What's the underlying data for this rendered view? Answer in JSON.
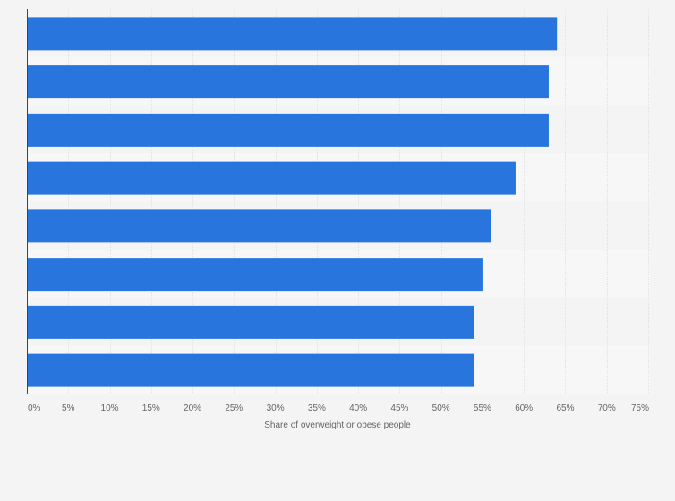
{
  "chart_data": {
    "type": "bar",
    "orientation": "horizontal",
    "categories": [
      "",
      "",
      "",
      "",
      "",
      "",
      "",
      ""
    ],
    "values": [
      64,
      63,
      63,
      59,
      56,
      55,
      54,
      54
    ],
    "xlabel": "Share of overweight or obese people",
    "xlim": [
      0,
      75
    ],
    "x_ticks": [
      "0%",
      "5%",
      "10%",
      "15%",
      "20%",
      "25%",
      "30%",
      "35%",
      "40%",
      "45%",
      "50%",
      "55%",
      "60%",
      "65%",
      "70%",
      "75%"
    ],
    "grid": true,
    "legend": "none",
    "colors": {
      "bar": "#2876dd",
      "background": "#f4f4f4",
      "band_light": "#f7f7f7",
      "gridline": "#e2e2e2",
      "axis": "#444444",
      "text": "#666666"
    }
  }
}
